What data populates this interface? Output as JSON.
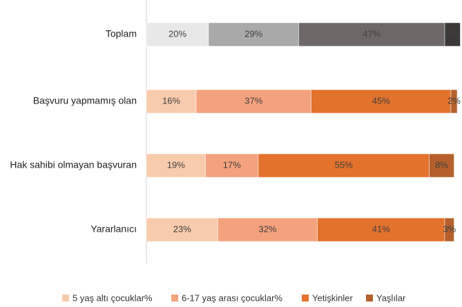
{
  "chart_data": {
    "type": "stacked-bar-horizontal",
    "categories": [
      "Toplam",
      "Başvuru yapmamış olan",
      "Hak sahibi olmayan başvuran",
      "Yararlanıcı"
    ],
    "xlim": [
      0,
      100
    ],
    "series": [
      {
        "name": "5 yaş altı çocuklar%",
        "color": "#f8cbad",
        "colors": [
          "#e8e8e8",
          "#f8cbad",
          "#f8cbad",
          "#f8cbad"
        ],
        "values": [
          20,
          16,
          19,
          23
        ],
        "value_labels": [
          "20%",
          "16%",
          "19%",
          "23%"
        ]
      },
      {
        "name": "6-17 yaş arası çocuklar%",
        "color": "#f4a27c",
        "colors": [
          "#a9a9a9",
          "#f4a27c",
          "#f4a27c",
          "#f4a27c"
        ],
        "values": [
          29,
          37,
          17,
          32
        ],
        "value_labels": [
          "29%",
          "37%",
          "17%",
          "32%"
        ]
      },
      {
        "name": "Yetişkinler",
        "color": "#e2722c",
        "colors": [
          "#6e6767",
          "#e2722c",
          "#e2722c",
          "#e2722c"
        ],
        "values": [
          47,
          45,
          55,
          41
        ],
        "value_labels": [
          "47%",
          "45%",
          "55%",
          "41%"
        ]
      },
      {
        "name": "Yaşlılar",
        "color": "#b5602c",
        "colors": [
          "#3b3838",
          "#b5602c",
          "#b5602c",
          "#b5602c"
        ],
        "values": [
          5,
          2,
          8,
          3
        ],
        "value_labels": [
          "5%",
          "2%",
          "8%",
          "3%"
        ]
      }
    ]
  }
}
